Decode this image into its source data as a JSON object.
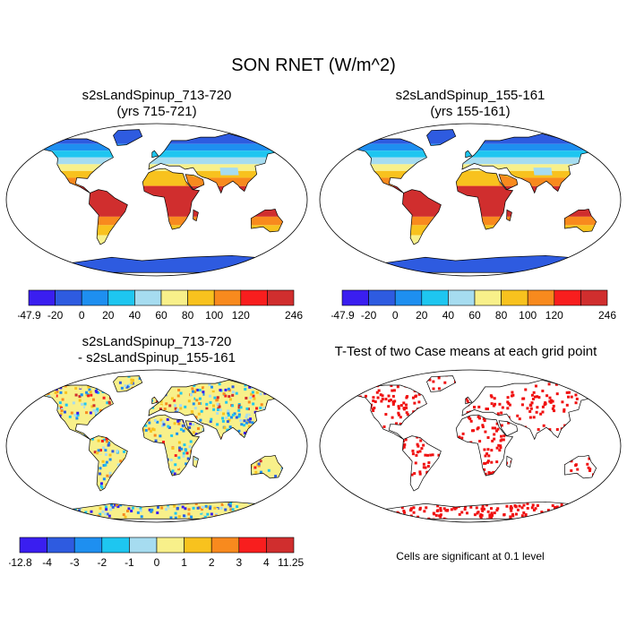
{
  "main_title": "SON RNET (W/m^2)",
  "panels": [
    {
      "id": "p1",
      "title_lines": [
        "s2sLandSpinup_713-720",
        "(yrs 715-721)"
      ]
    },
    {
      "id": "p2",
      "title_lines": [
        "s2sLandSpinup_155-161",
        "(yrs 155-161)"
      ]
    },
    {
      "id": "p3",
      "title_lines": [
        "s2sLandSpinup_713-720",
        "- s2sLandSpinup_155-161"
      ]
    },
    {
      "id": "p4",
      "title_lines": [
        "T-Test of two Case means at each grid point"
      ]
    }
  ],
  "significance_note": "Cells are significant at 0.1 level",
  "chart_data": [
    {
      "type": "heatmap",
      "title": "s2sLandSpinup_713-720 (yrs 715-721)",
      "variable": "SON RNET",
      "units": "W/m^2",
      "colorbar": {
        "tick_labels": [
          "-47.9",
          "-20",
          "0",
          "20",
          "40",
          "60",
          "80",
          "100",
          "120",
          "246"
        ],
        "colors": [
          "#3a1ef0",
          "#2e5be0",
          "#1e8ff0",
          "#1ec6f0",
          "#a6dcf0",
          "#f8f08a",
          "#f8c21e",
          "#f88a1e",
          "#f81e1e",
          "#d02e2e"
        ]
      }
    },
    {
      "type": "heatmap",
      "title": "s2sLandSpinup_155-161 (yrs 155-161)",
      "variable": "SON RNET",
      "units": "W/m^2",
      "colorbar": {
        "tick_labels": [
          "-47.9",
          "-20",
          "0",
          "20",
          "40",
          "60",
          "80",
          "100",
          "120",
          "246"
        ],
        "colors": [
          "#3a1ef0",
          "#2e5be0",
          "#1e8ff0",
          "#1ec6f0",
          "#a6dcf0",
          "#f8f08a",
          "#f8c21e",
          "#f88a1e",
          "#f81e1e",
          "#d02e2e"
        ]
      }
    },
    {
      "type": "heatmap",
      "title": "s2sLandSpinup_713-720 - s2sLandSpinup_155-161",
      "variable": "SON RNET difference",
      "units": "W/m^2",
      "colorbar": {
        "tick_labels": [
          "-12.8",
          "-4",
          "-3",
          "-2",
          "-1",
          "0",
          "1",
          "2",
          "3",
          "4",
          "11.251"
        ],
        "colors": [
          "#3a1ef0",
          "#2e5be0",
          "#1e8ff0",
          "#1ec6f0",
          "#a6dcf0",
          "#f8f08a",
          "#f8c21e",
          "#f88a1e",
          "#f81e1e",
          "#d02e2e"
        ]
      }
    },
    {
      "type": "heatmap",
      "title": "T-Test of two Case means at each grid point",
      "significance_level": 0.1,
      "colors": {
        "significant": "#f01010",
        "not_significant": "#ffffff"
      }
    }
  ]
}
